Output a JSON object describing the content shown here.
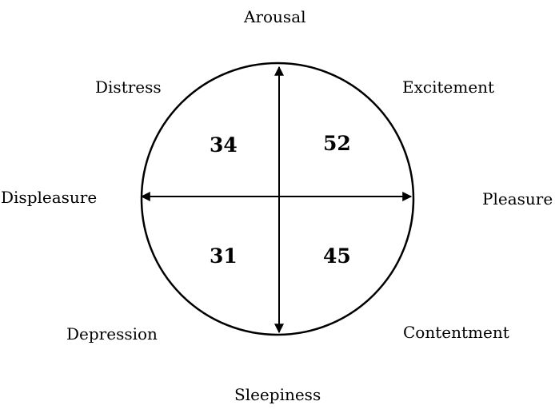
{
  "diagram": {
    "labels": {
      "top": "Arousal",
      "bottom": "Sleepiness",
      "left": "Displeasure",
      "right": "Pleasure",
      "top_left": "Distress",
      "top_right": "Excitement",
      "bottom_left": "Depression",
      "bottom_right": "Contentment"
    },
    "quadrant_values": {
      "top_left": "34",
      "top_right": "52",
      "bottom_left": "31",
      "bottom_right": "45"
    }
  }
}
